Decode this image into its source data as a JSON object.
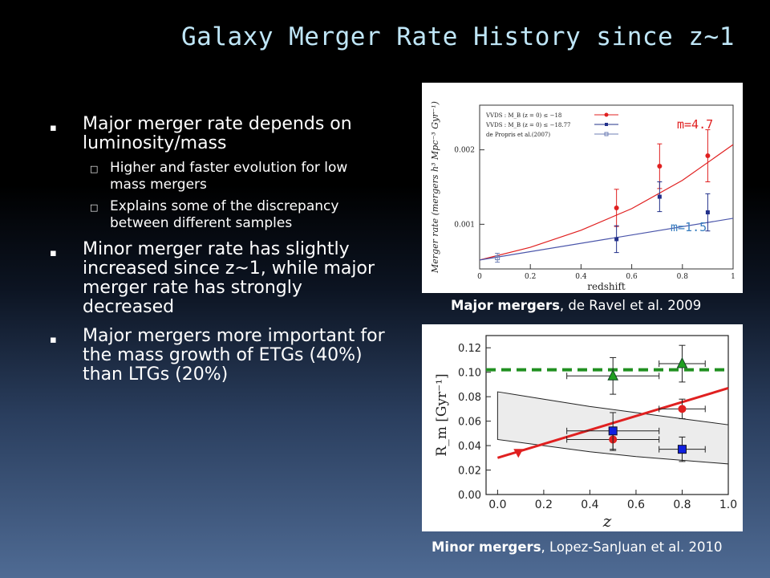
{
  "slide": {
    "title": "Galaxy Merger Rate History since z~1",
    "bullets": [
      {
        "text": "Major merger rate depends on luminosity/mass",
        "sub": [
          "Higher and faster evolution for low mass mergers",
          "Explains some of the discrepancy between different samples"
        ]
      },
      {
        "text": "Minor merger rate has slightly increased since z~1, while major merger rate has strongly decreased",
        "sub": []
      },
      {
        "text": "Major mergers more important for the mass growth of ETGs (40%) than LTGs (20%)",
        "sub": []
      }
    ],
    "bullet_marker": "▪",
    "sub_marker": "□"
  },
  "figure1": {
    "caption_bold": "Major mergers",
    "caption_rest": ", de Ravel et al. 2009",
    "ylabel": "Merger rate (mergers h³ Mpc⁻³ Gyr⁻¹)",
    "xlabel": "redshift",
    "legend": [
      "VVDS : M_B (z = 0) ≤ −18",
      "VVDS : M_B (z = 0) ≤ −18.77",
      "de Propris et al.(2007)"
    ],
    "annot_m47": "m=4.7",
    "annot_m15": "m=1.5",
    "xticks": [
      "0",
      "0.2",
      "0.4",
      "0.6",
      "0.8",
      "1"
    ],
    "yticks": [
      "0.001",
      "0.002"
    ]
  },
  "figure2": {
    "caption_bold": "Minor mergers",
    "caption_rest": ", Lopez-SanJuan et al. 2010",
    "ylabel": "R_m [Gyr⁻¹]",
    "xlabel": "z",
    "xticks": [
      "0.0",
      "0.2",
      "0.4",
      "0.6",
      "0.8",
      "1.0"
    ],
    "yticks": [
      "0.00",
      "0.02",
      "0.04",
      "0.06",
      "0.08",
      "0.10",
      "0.12"
    ]
  },
  "chart_data": [
    {
      "type": "scatter",
      "title": "",
      "xlabel": "redshift",
      "ylabel": "Merger rate (mergers h³ Mpc⁻³ Gyr⁻¹)",
      "xlim": [
        0,
        1
      ],
      "ylim": [
        0.0004,
        0.0026
      ],
      "grid": false,
      "legend_position": "top-left",
      "series": [
        {
          "name": "VVDS : M_B (z = 0) ≤ −18",
          "color": "#e02020",
          "x": [
            0.54,
            0.71,
            0.9
          ],
          "y": [
            0.00122,
            0.00178,
            0.00192
          ],
          "yerr": [
            0.00025,
            0.0003,
            0.00035
          ]
        },
        {
          "name": "VVDS : M_B (z = 0) ≤ −18.77",
          "color": "#22308a",
          "x": [
            0.54,
            0.71,
            0.9
          ],
          "y": [
            0.0008,
            0.00137,
            0.00116
          ],
          "yerr": [
            0.00018,
            0.0002,
            0.00025
          ]
        },
        {
          "name": "de Propris et al.(2007)",
          "color": "#6f7fb5",
          "x": [
            0.07
          ],
          "y": [
            0.00055
          ],
          "yerr": [
            6e-05
          ]
        }
      ],
      "fits": [
        {
          "label": "m=4.7",
          "color": "#e02020",
          "x": [
            0,
            0.2,
            0.4,
            0.6,
            0.8,
            1.0
          ],
          "y": [
            0.00052,
            0.00069,
            0.00092,
            0.00121,
            0.00159,
            0.00207
          ]
        },
        {
          "label": "m=1.5",
          "color": "#4a55aa",
          "x": [
            0,
            1.0
          ],
          "y": [
            0.00052,
            0.00108
          ]
        }
      ]
    },
    {
      "type": "scatter",
      "title": "",
      "xlabel": "z",
      "ylabel": "R_m [Gyr⁻¹]",
      "xlim": [
        -0.05,
        1.0
      ],
      "ylim": [
        0,
        0.13
      ],
      "grid": false,
      "series": [
        {
          "name": "",
          "marker": "triangle",
          "color": "#20a020",
          "x": [
            0.5,
            0.8
          ],
          "y": [
            0.097,
            0.107
          ],
          "xerr": [
            0.2,
            0.1
          ],
          "yerr": [
            0.015,
            0.015
          ]
        },
        {
          "name": "",
          "marker": "circle",
          "color": "#e02020",
          "x": [
            0.5,
            0.8
          ],
          "y": [
            0.045,
            0.07
          ],
          "xerr": [
            0.2,
            0.1
          ],
          "yerr": [
            0.009,
            0.008
          ]
        },
        {
          "name": "",
          "marker": "square",
          "color": "#1020e0",
          "x": [
            0.5,
            0.8
          ],
          "y": [
            0.052,
            0.037
          ],
          "xerr": [
            0.2,
            0.1
          ],
          "yerr": [
            0.015,
            0.01
          ]
        },
        {
          "name": "",
          "marker": "triangle-down",
          "color": "#e02020",
          "x": [
            0.09
          ],
          "y": [
            0.034
          ],
          "xerr": [
            0.0
          ],
          "yerr": [
            0.0
          ]
        }
      ],
      "lines": [
        {
          "style": "dashed",
          "color": "#209020",
          "x": [
            -0.05,
            1.0
          ],
          "y": [
            0.102,
            0.102
          ]
        },
        {
          "style": "solid",
          "color": "#e02020",
          "x": [
            0.0,
            1.0
          ],
          "y": [
            0.03,
            0.087
          ]
        }
      ],
      "band": {
        "x": [
          0.0,
          0.2,
          0.4,
          0.6,
          0.8,
          1.0
        ],
        "upper": [
          0.084,
          0.078,
          0.072,
          0.067,
          0.062,
          0.057
        ],
        "lower": [
          0.045,
          0.04,
          0.035,
          0.031,
          0.028,
          0.025
        ]
      }
    }
  ]
}
